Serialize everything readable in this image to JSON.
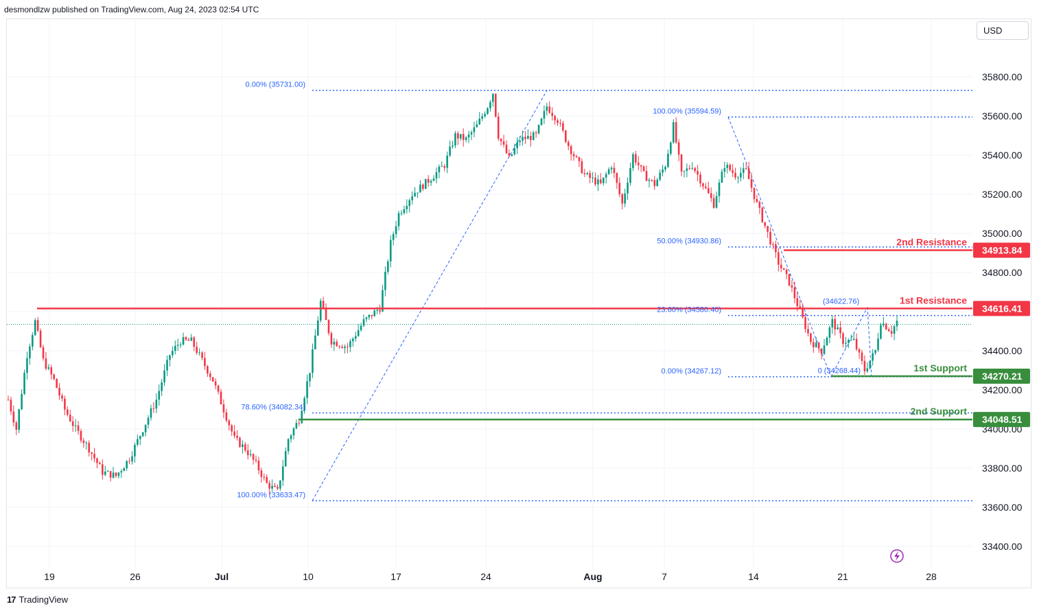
{
  "header": {
    "publisher_text": "desmondlzw published on TradingView.com, Aug 24, 2023 02:54 UTC"
  },
  "currency_button": {
    "label": "USD"
  },
  "footer": {
    "brand": "TradingView",
    "logo_glyph": "17"
  },
  "colors": {
    "up": "#089981",
    "down": "#f23645",
    "fib": "#2962ff",
    "resistance": "#f23645",
    "support": "#388e3c",
    "alert": "#9c27b0"
  },
  "alert_icon": "lightning-icon",
  "chart_data": {
    "type": "candlestick",
    "y_axis": {
      "ylim": [
        33280,
        35980
      ],
      "ticks": [
        "35800.00",
        "35600.00",
        "35400.00",
        "35200.00",
        "35000.00",
        "34800.00",
        "34600.00",
        "34400.00",
        "34200.00",
        "34000.00",
        "33800.00",
        "33600.00",
        "33400.00"
      ]
    },
    "x_axis": {
      "ticks": [
        "19",
        "26",
        "Jul",
        "10",
        "17",
        "24",
        "Aug",
        "7",
        "14",
        "21",
        "28"
      ]
    },
    "levels": [
      {
        "name": "2nd Resistance",
        "value": 34913.84,
        "kind": "resistance",
        "tag": "34913.84"
      },
      {
        "name": "1st Resistance",
        "value": 34616.41,
        "kind": "resistance",
        "tag": "34616.41"
      },
      {
        "name": "1st Support",
        "value": 34270.21,
        "kind": "support",
        "tag": "34270.21"
      },
      {
        "name": "2nd Support",
        "value": 34048.51,
        "kind": "support",
        "tag": "34048.51"
      }
    ],
    "fib_labels": [
      {
        "text": "0.00% (35731.00)",
        "value": 35731.0
      },
      {
        "text": "78.60% (34082.34)",
        "value": 34082.34
      },
      {
        "text": "100.00% (33633.47)",
        "value": 33633.47
      },
      {
        "text": "100.00% (35594.59)",
        "value": 35594.59
      },
      {
        "text": "50.00% (34930.86)",
        "value": 34930.86
      },
      {
        "text": "23.60% (34580.40)",
        "value": 34580.4
      },
      {
        "text": "0.00% (34267.12)",
        "value": 34267.12
      },
      {
        "text": "(34622.76)",
        "value": 34622.76
      },
      {
        "text": "0 (34268.44)",
        "value": 34268.44
      }
    ],
    "last_price_approx": 34535,
    "series_path": [
      [
        0,
        34150
      ],
      [
        3,
        34000
      ],
      [
        7,
        34380
      ],
      [
        10,
        34550
      ],
      [
        13,
        34350
      ],
      [
        17,
        34250
      ],
      [
        21,
        34100
      ],
      [
        25,
        34000
      ],
      [
        30,
        33900
      ],
      [
        35,
        33780
      ],
      [
        40,
        33760
      ],
      [
        45,
        33850
      ],
      [
        50,
        34000
      ],
      [
        55,
        34150
      ],
      [
        60,
        34380
      ],
      [
        64,
        34450
      ],
      [
        68,
        34450
      ],
      [
        72,
        34350
      ],
      [
        76,
        34250
      ],
      [
        80,
        34100
      ],
      [
        84,
        33950
      ],
      [
        88,
        33900
      ],
      [
        92,
        33820
      ],
      [
        96,
        33720
      ],
      [
        100,
        33680
      ],
      [
        104,
        33950
      ],
      [
        108,
        34050
      ],
      [
        112,
        34300
      ],
      [
        116,
        34650
      ],
      [
        120,
        34450
      ],
      [
        126,
        34420
      ],
      [
        132,
        34550
      ],
      [
        138,
        34620
      ],
      [
        142,
        34950
      ],
      [
        145,
        35100
      ],
      [
        150,
        35200
      ],
      [
        156,
        35270
      ],
      [
        162,
        35350
      ],
      [
        166,
        35500
      ],
      [
        170,
        35480
      ],
      [
        174,
        35550
      ],
      [
        178,
        35650
      ],
      [
        180,
        35720
      ],
      [
        182,
        35500
      ],
      [
        186,
        35380
      ],
      [
        190,
        35480
      ],
      [
        196,
        35500
      ],
      [
        200,
        35650
      ],
      [
        204,
        35580
      ],
      [
        208,
        35450
      ],
      [
        214,
        35300
      ],
      [
        220,
        35250
      ],
      [
        224,
        35350
      ],
      [
        228,
        35150
      ],
      [
        232,
        35400
      ],
      [
        236,
        35300
      ],
      [
        240,
        35250
      ],
      [
        244,
        35350
      ],
      [
        247,
        35550
      ],
      [
        250,
        35300
      ],
      [
        254,
        35350
      ],
      [
        258,
        35250
      ],
      [
        262,
        35150
      ],
      [
        266,
        35350
      ],
      [
        270,
        35300
      ],
      [
        274,
        35320
      ],
      [
        278,
        35150
      ],
      [
        282,
        35000
      ],
      [
        286,
        34850
      ],
      [
        290,
        34750
      ],
      [
        294,
        34600
      ],
      [
        298,
        34450
      ],
      [
        302,
        34400
      ],
      [
        306,
        34550
      ],
      [
        310,
        34450
      ],
      [
        314,
        34450
      ],
      [
        318,
        34300
      ],
      [
        322,
        34400
      ],
      [
        324,
        34550
      ],
      [
        328,
        34500
      ],
      [
        330,
        34550
      ]
    ]
  }
}
